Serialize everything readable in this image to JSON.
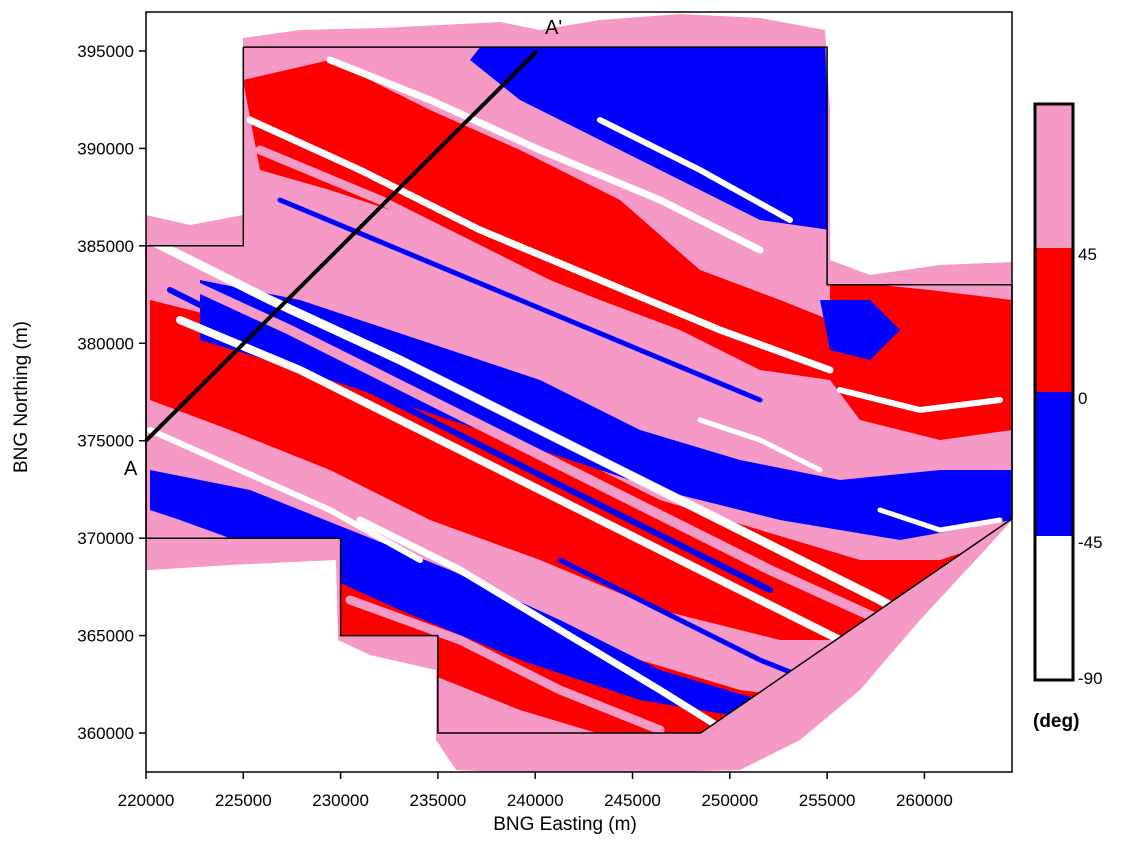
{
  "chart_data": {
    "type": "heatmap",
    "xlabel": "BNG Easting (m)",
    "ylabel": "BNG Northing (m)",
    "xlim": [
      220000,
      264500
    ],
    "ylim": [
      358000,
      397000
    ],
    "x_ticks": [
      220000,
      225000,
      230000,
      235000,
      240000,
      245000,
      250000,
      255000,
      260000
    ],
    "y_ticks": [
      360000,
      365000,
      370000,
      375000,
      380000,
      385000,
      390000,
      395000
    ],
    "x_tick_labels": [
      "220000",
      "225000",
      "230000",
      "235000",
      "240000",
      "245000",
      "250000",
      "255000",
      "260000"
    ],
    "y_tick_labels": [
      "360000",
      "365000",
      "370000",
      "375000",
      "380000",
      "385000",
      "390000",
      "395000"
    ],
    "colorbar": {
      "unit_label": "(deg)",
      "tick_labels": [
        "45",
        "0",
        "-45",
        "-90"
      ],
      "classes": [
        {
          "from": 45,
          "to": 90,
          "color": "#f59ac6"
        },
        {
          "from": 0,
          "to": 45,
          "color": "#ff0000"
        },
        {
          "from": -45,
          "to": 0,
          "color": "#0000ff"
        },
        {
          "from": -90,
          "to": -45,
          "color": "#ffffff"
        }
      ]
    },
    "profile": {
      "start_label": "A",
      "end_label": "A'",
      "start": [
        220000,
        375000
      ],
      "end": [
        240100,
        395000
      ]
    },
    "survey_boundary": [
      [
        225000,
        395200
      ],
      [
        255000,
        395200
      ],
      [
        255000,
        383000
      ],
      [
        264500,
        383000
      ],
      [
        264500,
        371000
      ],
      [
        248500,
        360000
      ],
      [
        235000,
        360000
      ],
      [
        235000,
        365000
      ],
      [
        230000,
        365000
      ],
      [
        230000,
        370000
      ],
      [
        220000,
        370000
      ],
      [
        220000,
        385000
      ],
      [
        225000,
        385000
      ]
    ],
    "colors": {
      "pink": "#f59ac6",
      "red": "#ff0000",
      "blue": "#0000ff",
      "white": "#ffffff"
    }
  }
}
